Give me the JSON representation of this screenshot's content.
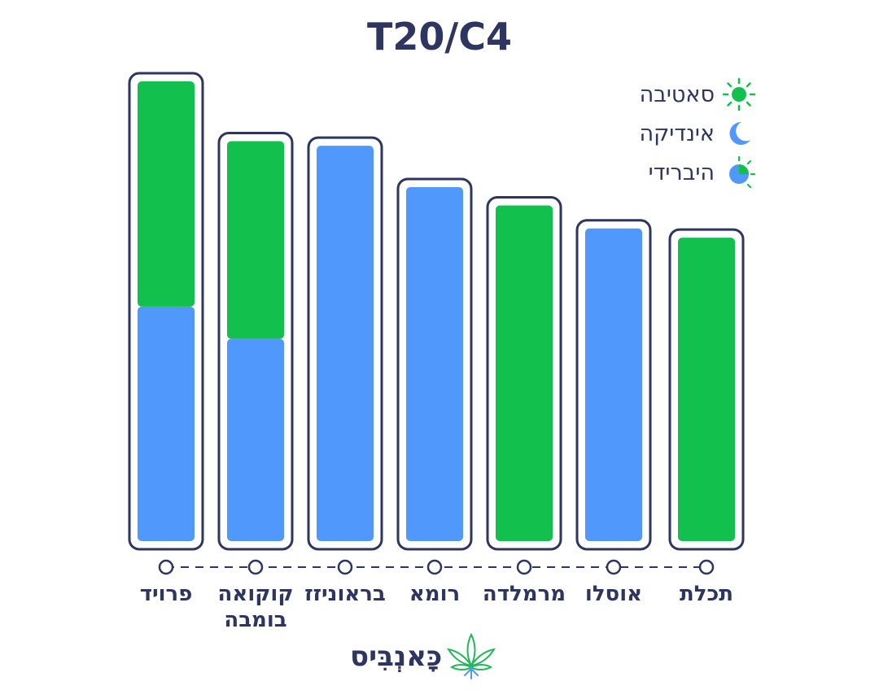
{
  "chart_data": {
    "type": "bar",
    "stacked": true,
    "title": "T20/C4",
    "categories": [
      "פרויד",
      "קוקואה בומבה",
      "בראוניזז",
      "רומא",
      "מרמלדה",
      "אוסלו",
      "תכלת"
    ],
    "series": [
      {
        "name": "סאטיבה",
        "color": "#12c04e",
        "values": [
          49,
          43,
          0,
          0,
          73,
          0,
          66
        ]
      },
      {
        "name": "אינדיקה",
        "color": "#5198fc",
        "values": [
          51,
          44,
          86,
          77,
          0,
          68,
          0
        ]
      }
    ],
    "legend": [
      {
        "label": "סאטיבה",
        "icon": "sun-icon"
      },
      {
        "label": "אינדיקה",
        "icon": "moon-icon"
      },
      {
        "label": "היברידי",
        "icon": "hybrid-icon"
      }
    ],
    "ylim": [
      0,
      100
    ],
    "legend_position": "top-right",
    "grid": false
  },
  "colors": {
    "sativa": "#12c04e",
    "indica": "#5198fc",
    "outline": "#2d3560"
  },
  "brand": {
    "name": "כָּאנְבִּיס",
    "logo_icon": "cannabis-leaf-icon"
  }
}
